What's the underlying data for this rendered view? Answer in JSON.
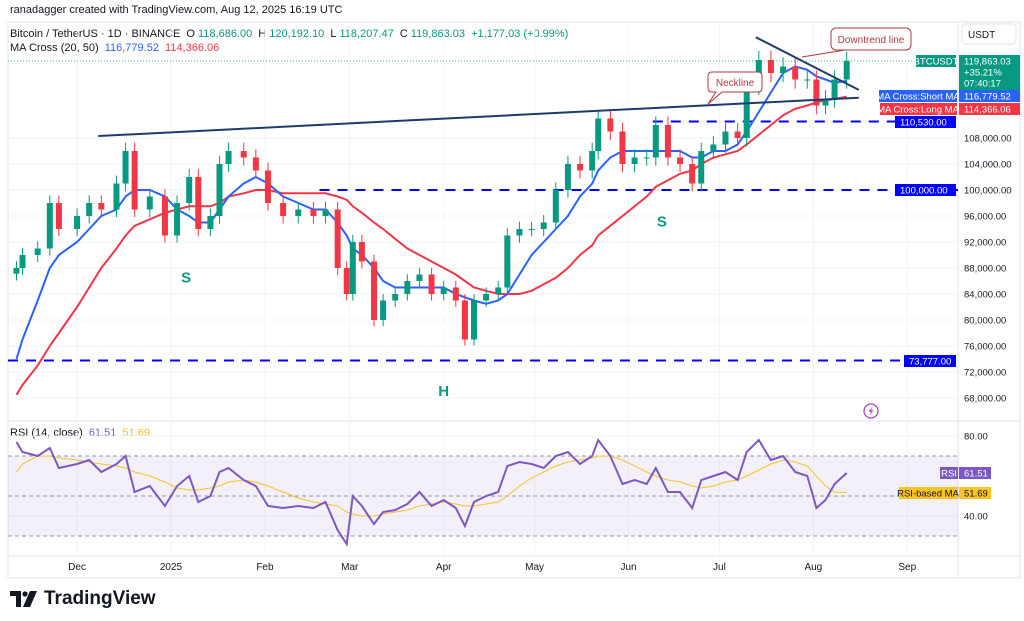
{
  "watermark": "ranadagger created with TradingView.com, Aug 12, 2025 16:19 UTC",
  "legend": {
    "symbol": "Bitcoin / TetherUS · 1D · BINANCE",
    "open_label": "O",
    "open": "118,686.00",
    "high_label": "H",
    "high": "120,192.10",
    "low_label": "L",
    "low": "118,207.47",
    "close_label": "C",
    "close": "119,863.03",
    "change": "+1,177.03 (+0.99%)",
    "ma_name": "MA Cross (20, 50)",
    "ma_short": "116,779.52",
    "ma_long": "114,366.06",
    "rsi_name": "RSI (14, close)",
    "rsi_value": "61.51",
    "rsi_ma_value": "51.69"
  },
  "currency": "USDT",
  "badges": {
    "symbol": "BTCUSDT",
    "price": "119,863.03",
    "pct": "+35.21%",
    "countdown": "07:40:17",
    "short_ma_label": "MA Cross:Short MA",
    "short_ma": "116,779.52",
    "long_ma_label": "MA Cross:Long MA",
    "long_ma": "114,366.06",
    "level1": "110,530.00",
    "level2": "100,000.00",
    "level3": "73,777.00",
    "rsi_label": "RSI",
    "rsi": "61.51",
    "rsi_ma_label": "RSI-based MA",
    "rsi_ma": "51.69"
  },
  "annotations": {
    "neckline": "Neckline",
    "downtrend": "Downtrend line",
    "s1": "S",
    "h": "H",
    "s2": "S"
  },
  "brand": "TradingView",
  "colors": {
    "up": "#089981",
    "down": "#f23645",
    "short_ma": "#2962ff",
    "long_ma": "#f23645",
    "level": "#0000ff",
    "trendline": "#1e3a6e",
    "rsi": "#7e57c2",
    "rsi_ma": "#f7c325",
    "callout": "#b2383c"
  },
  "chart_data": [
    {
      "type": "candlestick",
      "title": "Bitcoin / TetherUS · 1D · BINANCE",
      "ylim": [
        64000,
        126000
      ],
      "yticks": [
        108000,
        104000,
        100000,
        96000,
        92000,
        88000,
        84000,
        80000,
        76000,
        72000,
        68000
      ],
      "ytick_labels": [
        "108,000.00",
        "104,000.00",
        "100,000.00",
        "96,000.00",
        "92,000.00",
        "88,000.00",
        "84,000.00",
        "80,000.00",
        "76,000.00",
        "72,000.00",
        "68,000.00"
      ],
      "xticks": [
        "2024-12-01",
        "2025-01-01",
        "2025-02-01",
        "2025-03-01",
        "2025-04-01",
        "2025-05-01",
        "2025-06-01",
        "2025-07-01",
        "2025-08-01",
        "2025-09-01"
      ],
      "xtick_labels": [
        "Dec",
        "2025",
        "Feb",
        "Mar",
        "Apr",
        "May",
        "Jun",
        "Jul",
        "Aug",
        "Sep"
      ],
      "grid": true,
      "x": [
        "2024-11-11",
        "2024-11-13",
        "2024-11-18",
        "2024-11-22",
        "2024-11-25",
        "2024-12-01",
        "2024-12-05",
        "2024-12-09",
        "2024-12-14",
        "2024-12-17",
        "2024-12-20",
        "2024-12-25",
        "2024-12-30",
        "2025-01-03",
        "2025-01-07",
        "2025-01-10",
        "2025-01-14",
        "2025-01-17",
        "2025-01-20",
        "2025-01-25",
        "2025-01-29",
        "2025-02-02",
        "2025-02-07",
        "2025-02-12",
        "2025-02-17",
        "2025-02-21",
        "2025-02-25",
        "2025-02-28",
        "2025-03-02",
        "2025-03-05",
        "2025-03-09",
        "2025-03-12",
        "2025-03-16",
        "2025-03-20",
        "2025-03-24",
        "2025-03-28",
        "2025-04-01",
        "2025-04-05",
        "2025-04-08",
        "2025-04-11",
        "2025-04-15",
        "2025-04-19",
        "2025-04-22",
        "2025-04-26",
        "2025-04-30",
        "2025-05-04",
        "2025-05-08",
        "2025-05-12",
        "2025-05-16",
        "2025-05-20",
        "2025-05-22",
        "2025-05-26",
        "2025-05-30",
        "2025-06-03",
        "2025-06-07",
        "2025-06-10",
        "2025-06-14",
        "2025-06-18",
        "2025-06-22",
        "2025-06-25",
        "2025-06-29",
        "2025-07-03",
        "2025-07-07",
        "2025-07-10",
        "2025-07-14",
        "2025-07-18",
        "2025-07-22",
        "2025-07-26",
        "2025-07-30",
        "2025-08-02",
        "2025-08-05",
        "2025-08-08",
        "2025-08-12"
      ],
      "close": [
        88000,
        90000,
        91000,
        98000,
        94000,
        96000,
        98000,
        97000,
        101000,
        106000,
        97000,
        99000,
        93000,
        98000,
        102000,
        94000,
        96000,
        104000,
        106000,
        105000,
        103000,
        98000,
        96000,
        97000,
        96000,
        97000,
        88000,
        84000,
        92000,
        89000,
        80000,
        83000,
        84000,
        86000,
        87000,
        84000,
        85000,
        83000,
        77000,
        83000,
        84000,
        85000,
        93000,
        94000,
        94000,
        95000,
        100000,
        104000,
        103000,
        106000,
        111000,
        109000,
        104000,
        105000,
        105000,
        110000,
        105000,
        104000,
        101000,
        106000,
        107000,
        109000,
        108000,
        116000,
        120000,
        118000,
        119000,
        117000,
        117000,
        113000,
        114000,
        117000,
        119863.03
      ],
      "series": [
        {
          "name": "MA Cross:Short MA",
          "values": [
            74000,
            77000,
            83000,
            88000,
            90000,
            92000,
            94000,
            96000,
            97000,
            99000,
            100000,
            100000,
            99000,
            97000,
            96000,
            95000,
            95000,
            97000,
            99000,
            101000,
            102000,
            101000,
            99000,
            98000,
            97000,
            97000,
            95000,
            93000,
            91000,
            90000,
            88000,
            86000,
            85000,
            85000,
            85000,
            85000,
            85000,
            84000,
            83500,
            83000,
            82500,
            83000,
            84000,
            87000,
            90000,
            92000,
            94000,
            96000,
            99000,
            101000,
            103000,
            105000,
            106000,
            106000,
            106000,
            106000,
            106000,
            106000,
            105000,
            105000,
            106000,
            106000,
            107000,
            109000,
            112000,
            115000,
            118000,
            119000,
            118500,
            117500,
            117000,
            116500,
            116779.52
          ]
        },
        {
          "name": "MA Cross:Long MA",
          "values": [
            68500,
            70000,
            73000,
            76000,
            78000,
            82000,
            85000,
            88000,
            91000,
            93000,
            94500,
            95500,
            96500,
            97000,
            97500,
            97500,
            97500,
            98000,
            99000,
            99500,
            100000,
            100000,
            99500,
            99500,
            99500,
            99500,
            99000,
            98500,
            97500,
            96500,
            95000,
            94000,
            92500,
            91000,
            90000,
            89000,
            88000,
            87000,
            86000,
            85000,
            84500,
            84000,
            84000,
            84000,
            84500,
            85500,
            86500,
            88000,
            90000,
            91500,
            93000,
            94500,
            96000,
            97500,
            99000,
            100500,
            101500,
            102500,
            103000,
            104000,
            105000,
            105500,
            106000,
            107000,
            108500,
            110000,
            111500,
            112500,
            113000,
            113500,
            113800,
            114000,
            114366.06
          ]
        }
      ],
      "levels": [
        110530,
        100000,
        73777
      ],
      "trendlines": [
        {
          "name": "Neckline",
          "from": [
            "2024-12-08",
            108300
          ],
          "to": [
            "2025-08-16",
            114200
          ]
        },
        {
          "name": "Downtrend line",
          "from": [
            "2025-07-13",
            123500
          ],
          "to": [
            "2025-08-16",
            115400
          ]
        }
      ],
      "pattern_labels": [
        {
          "text": "S",
          "x": "2025-01-06",
          "y": 85800
        },
        {
          "text": "H",
          "x": "2025-04-01",
          "y": 68300
        },
        {
          "text": "S",
          "x": "2025-06-12",
          "y": 94400
        }
      ]
    },
    {
      "type": "line",
      "title": "RSI (14, close)",
      "ylim": [
        20,
        86
      ],
      "yticks": [
        80,
        40
      ],
      "ytick_labels": [
        "80.00",
        "40.00"
      ],
      "bands": [
        30,
        50,
        70
      ],
      "series": [
        {
          "name": "RSI",
          "values": [
            77,
            72,
            70,
            74,
            64,
            66,
            68,
            62,
            66,
            70,
            52,
            55,
            45,
            55,
            60,
            47,
            50,
            62,
            64,
            58,
            55,
            45,
            44,
            45,
            44,
            47,
            33,
            26,
            50,
            45,
            36,
            42,
            43,
            46,
            52,
            45,
            48,
            44,
            35,
            47,
            50,
            52,
            65,
            67,
            66,
            64,
            70,
            72,
            66,
            70,
            78,
            70,
            56,
            58,
            56,
            64,
            52,
            52,
            44,
            58,
            60,
            62,
            58,
            72,
            78,
            68,
            70,
            62,
            60,
            44,
            48,
            56,
            61.51
          ]
        },
        {
          "name": "RSI-based MA",
          "values": [
            62,
            66,
            70,
            70,
            69,
            68,
            67,
            66,
            65,
            64,
            62,
            60,
            57,
            54,
            53,
            53,
            54,
            55,
            57,
            58,
            57,
            55,
            52,
            49,
            47,
            46,
            45,
            42,
            41,
            40,
            40,
            41,
            42,
            43,
            45,
            46,
            47,
            46,
            45,
            45,
            46,
            47,
            50,
            55,
            59,
            62,
            65,
            67,
            68,
            69,
            70,
            70,
            68,
            65,
            62,
            60,
            58,
            57,
            55,
            54,
            55,
            57,
            58,
            60,
            63,
            66,
            68,
            67,
            65,
            60,
            55,
            52,
            51.69
          ]
        }
      ]
    }
  ]
}
